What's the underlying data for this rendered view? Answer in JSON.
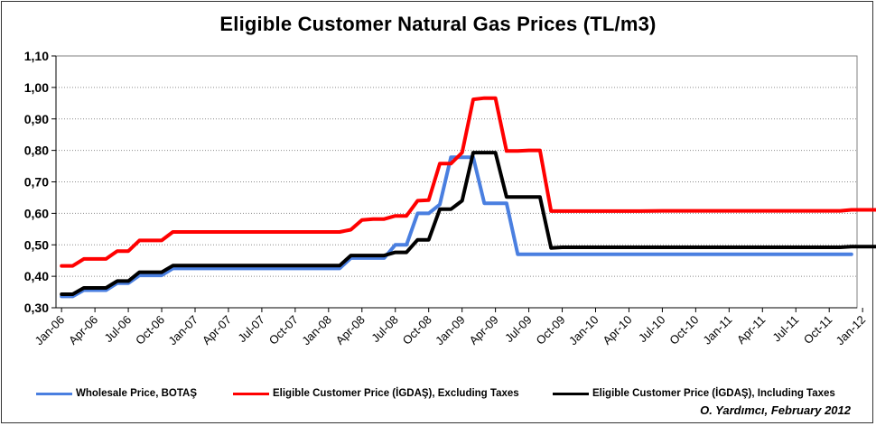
{
  "chart_data": {
    "type": "line",
    "title": "Eligible Customer Natural Gas Prices (TL/m3)",
    "xlabel": "",
    "ylabel": "",
    "ylim": [
      0.3,
      1.1
    ],
    "yticks": [
      "0,30",
      "0,40",
      "0,50",
      "0,60",
      "0,70",
      "0,80",
      "0,90",
      "1,00",
      "1,10"
    ],
    "xticks": [
      "Jan-06",
      "Apr-06",
      "Jul-06",
      "Oct-06",
      "Jan-07",
      "Apr-07",
      "Jul-07",
      "Oct-07",
      "Jan-08",
      "Apr-08",
      "Jul-08",
      "Oct-08",
      "Jan-09",
      "Apr-09",
      "Jul-09",
      "Oct-09",
      "Jan-10",
      "Apr-10",
      "Jul-10",
      "Oct-10",
      "Jan-11",
      "Apr-11",
      "Jul-11",
      "Oct-11",
      "Jan-12"
    ],
    "grid": true,
    "legend_position": "bottom",
    "series": [
      {
        "name": "Wholesale Price, BOTAŞ",
        "color": "#4a7fe0",
        "points": [
          [
            0,
            0.336
          ],
          [
            1,
            0.336
          ],
          [
            2,
            0.356
          ],
          [
            4,
            0.356
          ],
          [
            5,
            0.378
          ],
          [
            6,
            0.378
          ],
          [
            7,
            0.403
          ],
          [
            9,
            0.403
          ],
          [
            10,
            0.425
          ],
          [
            25,
            0.425
          ],
          [
            26,
            0.458
          ],
          [
            29,
            0.458
          ],
          [
            30,
            0.5
          ],
          [
            31,
            0.5
          ],
          [
            32,
            0.6
          ],
          [
            33,
            0.6
          ],
          [
            34,
            0.628
          ],
          [
            35,
            0.778
          ],
          [
            37,
            0.778
          ],
          [
            38,
            0.632
          ],
          [
            40,
            0.632
          ],
          [
            41,
            0.47
          ],
          [
            71,
            0.47
          ]
        ]
      },
      {
        "name": "Eligible Customer Price (İGDAŞ), Excluding Taxes",
        "color": "#ff0000",
        "points": [
          [
            0,
            0.433
          ],
          [
            1,
            0.433
          ],
          [
            2,
            0.455
          ],
          [
            4,
            0.455
          ],
          [
            5,
            0.48
          ],
          [
            6,
            0.48
          ],
          [
            7,
            0.514
          ],
          [
            9,
            0.514
          ],
          [
            10,
            0.541
          ],
          [
            25,
            0.541
          ],
          [
            26,
            0.548
          ],
          [
            27,
            0.579
          ],
          [
            28,
            0.582
          ],
          [
            29,
            0.582
          ],
          [
            30,
            0.592
          ],
          [
            31,
            0.592
          ],
          [
            32,
            0.64
          ],
          [
            33,
            0.642
          ],
          [
            34,
            0.758
          ],
          [
            35,
            0.758
          ],
          [
            36,
            0.793
          ],
          [
            37,
            0.962
          ],
          [
            38,
            0.966
          ],
          [
            39,
            0.966
          ],
          [
            40,
            0.798
          ],
          [
            41,
            0.798
          ],
          [
            42,
            0.8
          ],
          [
            43,
            0.8
          ],
          [
            44,
            0.607
          ],
          [
            52,
            0.607
          ],
          [
            54,
            0.608
          ],
          [
            70,
            0.608
          ],
          [
            71,
            0.611
          ],
          [
            80,
            0.611
          ]
        ]
      },
      {
        "name": "Eligible Customer Price (İGDAŞ), Including Taxes",
        "color": "#000000",
        "points": [
          [
            0,
            0.343
          ],
          [
            1,
            0.343
          ],
          [
            2,
            0.363
          ],
          [
            4,
            0.363
          ],
          [
            5,
            0.385
          ],
          [
            6,
            0.385
          ],
          [
            7,
            0.413
          ],
          [
            9,
            0.413
          ],
          [
            10,
            0.434
          ],
          [
            25,
            0.434
          ],
          [
            26,
            0.466
          ],
          [
            29,
            0.466
          ],
          [
            30,
            0.476
          ],
          [
            31,
            0.476
          ],
          [
            32,
            0.516
          ],
          [
            33,
            0.516
          ],
          [
            34,
            0.613
          ],
          [
            35,
            0.613
          ],
          [
            36,
            0.64
          ],
          [
            37,
            0.793
          ],
          [
            39,
            0.793
          ],
          [
            40,
            0.652
          ],
          [
            43,
            0.652
          ],
          [
            44,
            0.49
          ],
          [
            45,
            0.492
          ],
          [
            70,
            0.492
          ],
          [
            71,
            0.494
          ],
          [
            80,
            0.494
          ]
        ]
      }
    ]
  },
  "credit": "O. Yardımcı, February 2012"
}
